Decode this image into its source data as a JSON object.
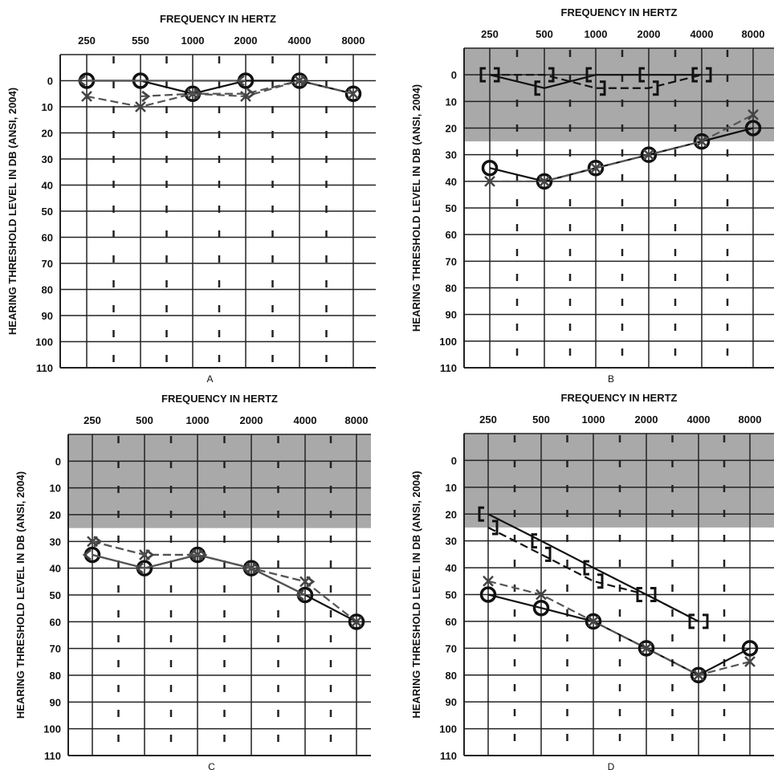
{
  "chart_data": [
    {
      "panel_label": "A",
      "type": "line",
      "title": "FREQUENCY IN HERTZ",
      "ylabel": "HEARING THRESHOLD LEVEL IN DB (ANSI, 2004)",
      "x_categories": [
        "250",
        "550",
        "1000",
        "2000",
        "4000",
        "8000"
      ],
      "y_ticks": [
        "0",
        "10",
        "20",
        "30",
        "40",
        "50",
        "60",
        "70",
        "80",
        "90",
        "100",
        "110"
      ],
      "ylim": [
        -10,
        110
      ],
      "y_inverted": true,
      "shaded_normal_region": false,
      "grid": true,
      "series": [
        {
          "symbol": "O",
          "values": [
            0,
            0,
            5,
            0,
            0,
            5
          ]
        },
        {
          "symbol": "X",
          "values": [
            6,
            10,
            5,
            6,
            0,
            5
          ]
        },
        {
          "symbol": "<",
          "values": [
            0,
            null,
            null,
            0,
            null,
            null
          ]
        },
        {
          "symbol": ">",
          "values": [
            null,
            6,
            5,
            5,
            0,
            null
          ]
        }
      ]
    },
    {
      "panel_label": "B",
      "type": "line",
      "title": "FREQUENCY IN HERTZ",
      "ylabel": "HEARING THRESHOLD LEVEL IN DB (ANSI, 2004)",
      "x_categories": [
        "250",
        "500",
        "1000",
        "2000",
        "4000",
        "8000"
      ],
      "y_ticks": [
        "0",
        "10",
        "20",
        "30",
        "40",
        "50",
        "60",
        "70",
        "80",
        "90",
        "100",
        "110"
      ],
      "ylim": [
        -10,
        110
      ],
      "y_inverted": true,
      "shaded_normal_region": true,
      "grid": true,
      "series": [
        {
          "symbol": "O",
          "values": [
            35,
            40,
            35,
            30,
            25,
            20
          ]
        },
        {
          "symbol": "X",
          "values": [
            40,
            40,
            35,
            30,
            25,
            15
          ]
        },
        {
          "symbol": "[",
          "values": [
            0,
            5,
            0,
            0,
            0,
            null
          ]
        },
        {
          "symbol": "]",
          "values": [
            0,
            0,
            5,
            5,
            0,
            null
          ]
        }
      ]
    },
    {
      "panel_label": "C",
      "type": "line",
      "title": "FREQUENCY IN HERTZ",
      "ylabel": "HEARING THRESHOLD LEVEL IN DB (ANSI, 2004)",
      "x_categories": [
        "250",
        "500",
        "1000",
        "2000",
        "4000",
        "8000"
      ],
      "y_ticks": [
        "0",
        "10",
        "20",
        "30",
        "40",
        "50",
        "60",
        "70",
        "80",
        "90",
        "100",
        "110"
      ],
      "ylim": [
        -10,
        110
      ],
      "y_inverted": true,
      "shaded_normal_region": true,
      "grid": true,
      "series": [
        {
          "symbol": "O",
          "values": [
            35,
            40,
            35,
            40,
            50,
            60
          ]
        },
        {
          "symbol": "X",
          "values": [
            30,
            35,
            35,
            40,
            45,
            60
          ]
        },
        {
          "symbol": "<",
          "values": [
            35,
            40,
            35,
            40,
            50,
            null
          ]
        },
        {
          "symbol": ">",
          "values": [
            30,
            35,
            35,
            40,
            45,
            null
          ]
        }
      ]
    },
    {
      "panel_label": "D",
      "type": "line",
      "title": "FREQUENCY IN HERTZ",
      "ylabel": "HEARING THRESHOLD LEVEL IN DB (ANSI, 2004)",
      "x_categories": [
        "250",
        "500",
        "1000",
        "2000",
        "4000",
        "8000"
      ],
      "y_ticks": [
        "0",
        "10",
        "20",
        "30",
        "40",
        "50",
        "60",
        "70",
        "80",
        "90",
        "100",
        "110"
      ],
      "ylim": [
        -10,
        110
      ],
      "y_inverted": true,
      "shaded_normal_region": true,
      "grid": true,
      "series": [
        {
          "symbol": "O",
          "values": [
            50,
            55,
            60,
            70,
            80,
            70
          ]
        },
        {
          "symbol": "X",
          "values": [
            45,
            50,
            60,
            70,
            80,
            75
          ]
        },
        {
          "symbol": "[",
          "values": [
            20,
            30,
            40,
            50,
            60,
            null
          ]
        },
        {
          "symbol": "]",
          "values": [
            25,
            35,
            45,
            50,
            60,
            null
          ]
        }
      ]
    }
  ]
}
